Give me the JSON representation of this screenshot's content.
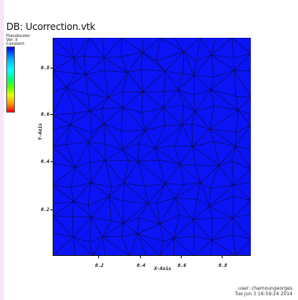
{
  "window": {
    "db_title": "DB: Ucorrection.vtk"
  },
  "legend": {
    "plot_type": "Pseudocolor",
    "variable": "Var: Ii",
    "constant": "Constant."
  },
  "colors": {
    "field": "#0b14f5",
    "mesh_lines": "#0a0a40",
    "background": "#ffffff",
    "left_strip": "#f7e7f5"
  },
  "axes": {
    "x_title": "X-Axis",
    "y_title": "Y-Axis",
    "x_ticks": [
      "0.2",
      "0.4",
      "0.6",
      "0.8"
    ],
    "y_ticks": [
      "0.8",
      "0.6",
      "0.4",
      "0.2"
    ]
  },
  "footer": {
    "user": "user: chamoungeorges",
    "timestamp": "Tue Jun  3 16:59:24 2014"
  }
}
